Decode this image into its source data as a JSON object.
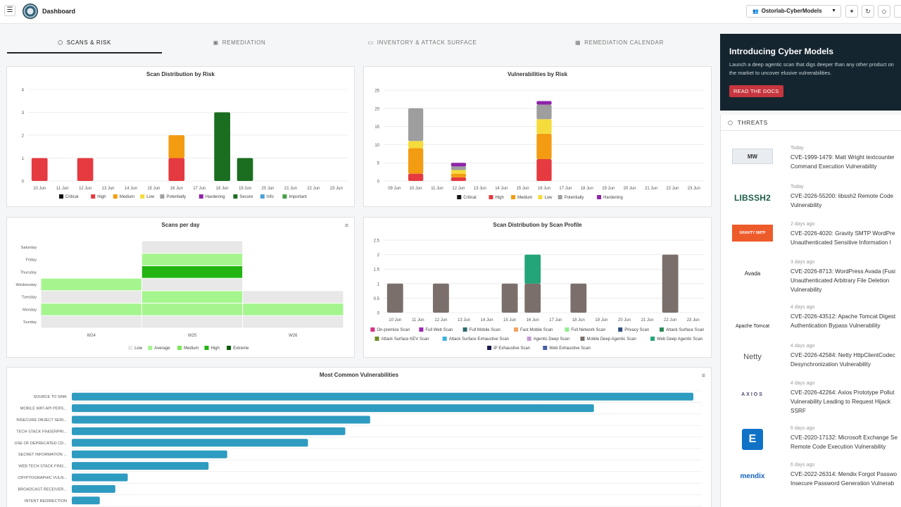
{
  "header": {
    "title": "Dashboard",
    "org": "Ostorlab-CyberModels"
  },
  "tabs": [
    {
      "label": "SCANS & RISK"
    },
    {
      "label": "REMEDIATION"
    },
    {
      "label": "INVENTORY & ATTACK SURFACE"
    },
    {
      "label": "REMEDIATION CALENDAR"
    }
  ],
  "promo": {
    "title": "Introducing Cyber Models",
    "text": "Launch a deep agentic scan that digs deeper than any other product on the market to uncover elusive vulnerabilities.",
    "button": "READ THE DOCS"
  },
  "threats": {
    "heading": "THREATS",
    "items": [
      {
        "logo": "MW",
        "date": "Today",
        "title1": "CVE-1999-1479: Matt Wright textcounter",
        "title2": "Command Execution Vulnerability"
      },
      {
        "logo": "LIBSSH2",
        "date": "Today",
        "title1": "CVE-2026-55200: libssh2 Remote Code",
        "title2": "Vulnerability"
      },
      {
        "logo": "GRAVITY SMTP",
        "date": "2 days ago",
        "title1": "CVE-2026-4020: Gravity SMTP WordPre",
        "title2": "Unauthenticated Sensitive Information I"
      },
      {
        "logo": "Avada",
        "date": "3 days ago",
        "title1": "CVE-2026-8713: WordPress Avada (Fusi",
        "title2": "Unauthenticated Arbitrary File Deletion",
        "title3": "Vulnerability"
      },
      {
        "logo": "Apache Tomcat",
        "date": "4 days ago",
        "title1": "CVE-2026-43512: Apache Tomcat Digest",
        "title2": "Authentication Bypass Vulnerability"
      },
      {
        "logo": "Netty",
        "date": "4 days ago",
        "title1": "CVE-2026-42584: Netty HttpClientCodec",
        "title2": "Desynchronization Vulnerability"
      },
      {
        "logo": "AXIOS",
        "date": "4 days ago",
        "title1": "CVE-2026-42264: Axios Prototype Pollut",
        "title2": "Vulnerability Leading to Request Hijack",
        "title3": "SSRF"
      },
      {
        "logo": "E",
        "date": "6 days ago",
        "title1": "CVE-2020-17132: Microsoft Exchange Se",
        "title2": "Remote Code Execution Vulnerability"
      },
      {
        "logo": "mendix",
        "date": "6 days ago",
        "title1": "CVE-2022-26314: Mendix Forgot Passwo",
        "title2": "Insecure Password Generation Vulnerab"
      }
    ]
  },
  "colors": {
    "Critical": "#111111",
    "High": "#e53a3f",
    "Medium": "#f39c12",
    "Low": "#f5dc3c",
    "Potentially": "#9e9e9e",
    "Hardening": "#8e24aa",
    "Secure": "#1b6e20",
    "Info": "#4aa3df",
    "Important": "#43a047"
  },
  "chart_data": [
    {
      "type": "bar",
      "title": "Scan Distribution by Risk",
      "categories": [
        "10 Jun",
        "11 Jun",
        "12 Jun",
        "13 Jun",
        "14 Jun",
        "15 Jun",
        "16 Jun",
        "17 Jun",
        "18 Jun",
        "19 Jun",
        "20 Jun",
        "21 Jun",
        "22 Jun",
        "23 Jun"
      ],
      "ylim": [
        0,
        4
      ],
      "yticks": [
        0,
        1,
        2,
        3,
        4
      ],
      "stacked": true,
      "legend": [
        "Critical",
        "High",
        "Medium",
        "Low",
        "Potentially",
        "Hardening",
        "Secure",
        "Info",
        "Important"
      ],
      "legend_position": "bottom",
      "series": [
        {
          "name": "High",
          "values": [
            1,
            0,
            1,
            0,
            0,
            0,
            1,
            0,
            0,
            0,
            0,
            0,
            0,
            0
          ]
        },
        {
          "name": "Medium",
          "values": [
            0,
            0,
            0,
            0,
            0,
            0,
            1,
            0,
            0,
            0,
            0,
            0,
            0,
            0
          ]
        },
        {
          "name": "Secure",
          "values": [
            0,
            0,
            0,
            0,
            0,
            0,
            0,
            0,
            3,
            1,
            0,
            0,
            0,
            0
          ]
        }
      ]
    },
    {
      "type": "bar",
      "title": "Vulnerabilities by Risk",
      "categories": [
        "09 Jun",
        "10 Jun",
        "11 Jun",
        "12 Jun",
        "13 Jun",
        "14 Jun",
        "15 Jun",
        "16 Jun",
        "17 Jun",
        "18 Jun",
        "19 Jun",
        "20 Jun",
        "21 Jun",
        "22 Jun",
        "23 Jun"
      ],
      "ylim": [
        0,
        25
      ],
      "yticks": [
        0,
        5,
        10,
        15,
        20,
        25
      ],
      "stacked": true,
      "legend": [
        "Critical",
        "High",
        "Medium",
        "Low",
        "Potentially",
        "Hardening"
      ],
      "legend_position": "bottom",
      "series": [
        {
          "name": "High",
          "values": [
            0,
            2,
            0,
            1,
            0,
            0,
            0,
            6,
            0,
            0,
            0,
            0,
            0,
            0,
            0
          ]
        },
        {
          "name": "Medium",
          "values": [
            0,
            7,
            0,
            1,
            0,
            0,
            0,
            7,
            0,
            0,
            0,
            0,
            0,
            0,
            0
          ]
        },
        {
          "name": "Low",
          "values": [
            0,
            2,
            0,
            1,
            0,
            0,
            0,
            4,
            0,
            0,
            0,
            0,
            0,
            0,
            0
          ]
        },
        {
          "name": "Potentially",
          "values": [
            0,
            9,
            0,
            1,
            0,
            0,
            0,
            4,
            0,
            0,
            0,
            0,
            0,
            0,
            0
          ]
        },
        {
          "name": "Hardening",
          "values": [
            0,
            0,
            0,
            1,
            0,
            0,
            0,
            1,
            0,
            0,
            0,
            0,
            0,
            0,
            0
          ]
        }
      ]
    },
    {
      "type": "heatmap",
      "title": "Scans per day",
      "rows": [
        "Saturday",
        "Friday",
        "Thursday",
        "Wednesday",
        "Tuesday",
        "Monday",
        "Sunday"
      ],
      "columns": [
        "W24",
        "W25",
        "W26"
      ],
      "levels": [
        "Low",
        "Average",
        "Medium",
        "High",
        "Extreme"
      ],
      "level_colors": [
        "#e8e8e8",
        "#a5f58f",
        "#7ce65a",
        "#22b511",
        "#0a5c08"
      ],
      "legend_position": "bottom",
      "cells": [
        [
          null,
          0,
          null
        ],
        [
          null,
          1,
          null
        ],
        [
          null,
          3,
          null
        ],
        [
          1,
          0,
          null
        ],
        [
          0,
          1,
          0
        ],
        [
          1,
          1,
          1
        ],
        [
          0,
          0,
          0
        ]
      ]
    },
    {
      "type": "bar",
      "title": "Scan Distribution by Scan Profile",
      "categories": [
        "10 Jun",
        "11 Jun",
        "12 Jun",
        "13 Jun",
        "14 Jun",
        "15 Jun",
        "16 Jun",
        "17 Jun",
        "18 Jun",
        "19 Jun",
        "20 Jun",
        "21 Jun",
        "22 Jun",
        "23 Jun"
      ],
      "ylim": [
        0,
        2.5
      ],
      "yticks": [
        0,
        0.5,
        1,
        1.5,
        2,
        2.5
      ],
      "stacked": true,
      "legend_position": "bottom",
      "legend": [
        {
          "name": "On-premise Scan",
          "color": "#d63384"
        },
        {
          "name": "Full Web Scan",
          "color": "#9c27b0"
        },
        {
          "name": "Full Mobile Scan",
          "color": "#2e6b6b"
        },
        {
          "name": "Fast Mobile Scan",
          "color": "#f4a460"
        },
        {
          "name": "Full Network Scan",
          "color": "#90ee90"
        },
        {
          "name": "Privacy Scan",
          "color": "#2f4f7f"
        },
        {
          "name": "Attack Surface Scan",
          "color": "#2e8b57"
        },
        {
          "name": "Attack Surface KEV Scan",
          "color": "#6b8e23"
        },
        {
          "name": "Attack Surface Exhaustive Scan",
          "color": "#3bb4e0"
        },
        {
          "name": "Agentic Deep Scan",
          "color": "#c39bd3"
        },
        {
          "name": "Mobile Deep Agentic Scan",
          "color": "#7a6f6a"
        },
        {
          "name": "Web Deep Agentic Scan",
          "color": "#23a479"
        },
        {
          "name": "IP Exhaustive Scan",
          "color": "#1a1a4e"
        },
        {
          "name": "Web Exhaustive Scan",
          "color": "#4a5fa8"
        }
      ],
      "series": [
        {
          "name": "Mobile Deep Agentic Scan",
          "values": [
            1,
            0,
            1,
            0,
            0,
            1,
            1,
            0,
            1,
            0,
            0,
            0,
            2,
            0
          ]
        },
        {
          "name": "Web Deep Agentic Scan",
          "values": [
            0,
            0,
            0,
            0,
            0,
            0,
            1,
            0,
            0,
            0,
            0,
            0,
            0,
            0
          ]
        }
      ]
    },
    {
      "type": "bar",
      "orientation": "horizontal",
      "title": "Most Common Vulnerabilities",
      "categories": [
        "SOURCE TO SINK",
        "MOBILE WIFI API PERS...",
        "INSECURE OBJECT SERI...",
        "TECH STACK FINGERPRI...",
        "USE OF DEPRECATED CD...",
        "SECRET INFORMATION ...",
        "WEB TECH STACK FING...",
        "CRYPTOGRAPHIC VULN...",
        "BROADCAST RECEIVER...",
        "INTENT REDIRECTION"
      ],
      "values": [
        100,
        84,
        48,
        44,
        38,
        25,
        22,
        9,
        7,
        4.5
      ],
      "color": "#2e9bc0"
    }
  ]
}
